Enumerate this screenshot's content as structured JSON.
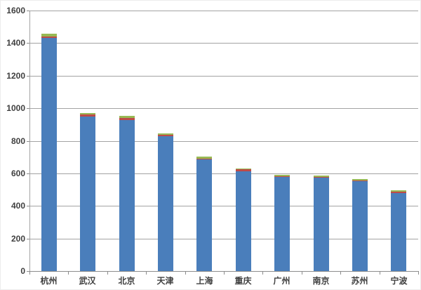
{
  "chart_data": {
    "type": "bar",
    "stacked": true,
    "title": "",
    "xlabel": "",
    "ylabel": "",
    "categories": [
      "杭州",
      "武汉",
      "北京",
      "天津",
      "上海",
      "重庆",
      "广州",
      "南京",
      "苏州",
      "宁波"
    ],
    "series": [
      {
        "name": "series-blue",
        "color": "#4a7ebb",
        "values": [
          1430,
          950,
          928,
          830,
          686,
          612,
          576,
          572,
          550,
          480
        ]
      },
      {
        "name": "series-red",
        "color": "#be4b48",
        "values": [
          12,
          13,
          13,
          8,
          6,
          12,
          5,
          8,
          7,
          9
        ]
      },
      {
        "name": "series-green",
        "color": "#98b954",
        "values": [
          14,
          8,
          13,
          8,
          9,
          7,
          8,
          8,
          6,
          9
        ]
      }
    ],
    "ylim": [
      0,
      1600
    ],
    "ytick_step": 200,
    "ytick_labels": [
      "0",
      "200",
      "400",
      "600",
      "800",
      "1000",
      "1200",
      "1400",
      "1600"
    ],
    "grid": "horizontal",
    "legend": "none"
  },
  "colors": {
    "background": "#ffffff",
    "gridline": "#a3a3a3",
    "axis_line": "#8c8c8c",
    "label_text": "#3f3f3f"
  }
}
